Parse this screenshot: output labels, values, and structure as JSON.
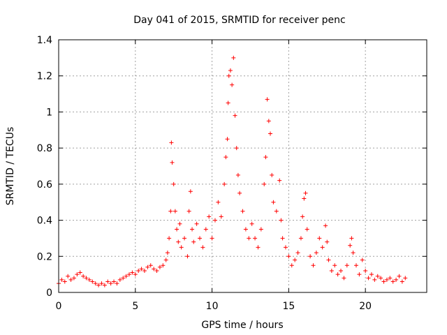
{
  "chart_data": {
    "type": "scatter",
    "title": "Day 041 of 2015, SRMTID for receiver penc",
    "xlabel": "GPS time / hours",
    "ylabel": "SRMTID / TECUs",
    "xlim": [
      0,
      24
    ],
    "ylim": [
      0,
      1.4
    ],
    "xticks": [
      0,
      5,
      10,
      15,
      20
    ],
    "xtick_labels": [
      "0",
      "5",
      "10",
      "15",
      "20"
    ],
    "yticks": [
      0,
      0.2,
      0.4,
      0.6,
      0.8,
      1,
      1.2,
      1.4
    ],
    "ytick_labels": [
      "0",
      "0.2",
      "0.4",
      "0.6",
      "0.8",
      "1",
      "1.2",
      "1.4"
    ],
    "grid": true,
    "marker": "+",
    "series_color": "#ff0000",
    "series": [
      {
        "name": "SRMTID",
        "points": [
          [
            0.0,
            0.05
          ],
          [
            0.2,
            0.07
          ],
          [
            0.4,
            0.06
          ],
          [
            0.6,
            0.09
          ],
          [
            0.8,
            0.07
          ],
          [
            1.0,
            0.08
          ],
          [
            1.2,
            0.1
          ],
          [
            1.4,
            0.11
          ],
          [
            1.6,
            0.09
          ],
          [
            1.8,
            0.08
          ],
          [
            2.0,
            0.07
          ],
          [
            2.2,
            0.06
          ],
          [
            2.4,
            0.05
          ],
          [
            2.6,
            0.04
          ],
          [
            2.8,
            0.05
          ],
          [
            3.0,
            0.04
          ],
          [
            3.2,
            0.06
          ],
          [
            3.4,
            0.05
          ],
          [
            3.6,
            0.06
          ],
          [
            3.8,
            0.05
          ],
          [
            4.0,
            0.07
          ],
          [
            4.2,
            0.08
          ],
          [
            4.4,
            0.09
          ],
          [
            4.6,
            0.1
          ],
          [
            4.8,
            0.11
          ],
          [
            5.0,
            0.1
          ],
          [
            5.2,
            0.12
          ],
          [
            5.4,
            0.13
          ],
          [
            5.6,
            0.12
          ],
          [
            5.8,
            0.14
          ],
          [
            6.0,
            0.15
          ],
          [
            6.2,
            0.13
          ],
          [
            6.4,
            0.12
          ],
          [
            6.6,
            0.14
          ],
          [
            6.8,
            0.15
          ],
          [
            7.0,
            0.18
          ],
          [
            7.1,
            0.22
          ],
          [
            7.2,
            0.3
          ],
          [
            7.3,
            0.45
          ],
          [
            7.35,
            0.83
          ],
          [
            7.4,
            0.72
          ],
          [
            7.5,
            0.6
          ],
          [
            7.6,
            0.45
          ],
          [
            7.7,
            0.35
          ],
          [
            7.8,
            0.28
          ],
          [
            7.9,
            0.38
          ],
          [
            8.0,
            0.25
          ],
          [
            8.2,
            0.3
          ],
          [
            8.4,
            0.2
          ],
          [
            8.5,
            0.45
          ],
          [
            8.6,
            0.56
          ],
          [
            8.7,
            0.35
          ],
          [
            8.8,
            0.28
          ],
          [
            9.0,
            0.38
          ],
          [
            9.2,
            0.3
          ],
          [
            9.4,
            0.25
          ],
          [
            9.6,
            0.35
          ],
          [
            9.8,
            0.42
          ],
          [
            10.0,
            0.3
          ],
          [
            10.2,
            0.4
          ],
          [
            10.4,
            0.5
          ],
          [
            10.6,
            0.42
          ],
          [
            10.8,
            0.6
          ],
          [
            10.9,
            0.75
          ],
          [
            11.0,
            0.85
          ],
          [
            11.05,
            1.05
          ],
          [
            11.1,
            1.2
          ],
          [
            11.2,
            1.23
          ],
          [
            11.3,
            1.15
          ],
          [
            11.4,
            1.3
          ],
          [
            11.5,
            0.98
          ],
          [
            11.6,
            0.8
          ],
          [
            11.7,
            0.65
          ],
          [
            11.8,
            0.55
          ],
          [
            12.0,
            0.45
          ],
          [
            12.2,
            0.35
          ],
          [
            12.4,
            0.3
          ],
          [
            12.6,
            0.38
          ],
          [
            12.8,
            0.3
          ],
          [
            13.0,
            0.25
          ],
          [
            13.2,
            0.35
          ],
          [
            13.4,
            0.6
          ],
          [
            13.5,
            0.75
          ],
          [
            13.6,
            1.07
          ],
          [
            13.7,
            0.95
          ],
          [
            13.8,
            0.88
          ],
          [
            13.9,
            0.65
          ],
          [
            14.0,
            0.5
          ],
          [
            14.2,
            0.45
          ],
          [
            14.4,
            0.62
          ],
          [
            14.5,
            0.4
          ],
          [
            14.6,
            0.3
          ],
          [
            14.8,
            0.25
          ],
          [
            15.0,
            0.2
          ],
          [
            15.2,
            0.15
          ],
          [
            15.4,
            0.18
          ],
          [
            15.6,
            0.22
          ],
          [
            15.8,
            0.3
          ],
          [
            15.9,
            0.42
          ],
          [
            16.0,
            0.52
          ],
          [
            16.1,
            0.55
          ],
          [
            16.2,
            0.35
          ],
          [
            16.4,
            0.2
          ],
          [
            16.6,
            0.15
          ],
          [
            16.8,
            0.22
          ],
          [
            17.0,
            0.3
          ],
          [
            17.2,
            0.25
          ],
          [
            17.4,
            0.37
          ],
          [
            17.5,
            0.28
          ],
          [
            17.6,
            0.18
          ],
          [
            17.8,
            0.12
          ],
          [
            18.0,
            0.15
          ],
          [
            18.2,
            0.1
          ],
          [
            18.4,
            0.12
          ],
          [
            18.6,
            0.08
          ],
          [
            18.8,
            0.15
          ],
          [
            19.0,
            0.26
          ],
          [
            19.1,
            0.3
          ],
          [
            19.2,
            0.22
          ],
          [
            19.4,
            0.15
          ],
          [
            19.6,
            0.1
          ],
          [
            19.8,
            0.18
          ],
          [
            20.0,
            0.12
          ],
          [
            20.2,
            0.08
          ],
          [
            20.4,
            0.1
          ],
          [
            20.6,
            0.07
          ],
          [
            20.8,
            0.09
          ],
          [
            21.0,
            0.08
          ],
          [
            21.2,
            0.06
          ],
          [
            21.4,
            0.07
          ],
          [
            21.6,
            0.08
          ],
          [
            21.8,
            0.06
          ],
          [
            22.0,
            0.07
          ],
          [
            22.2,
            0.09
          ],
          [
            22.4,
            0.06
          ],
          [
            22.6,
            0.08
          ]
        ]
      }
    ]
  }
}
